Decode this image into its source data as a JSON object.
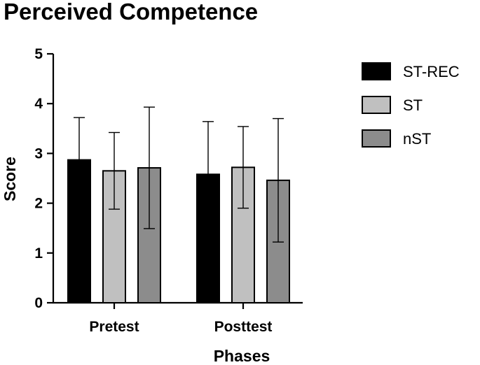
{
  "chart_data": {
    "type": "bar",
    "title": "Perceived Competence",
    "xlabel": "Phases",
    "ylabel": "Score",
    "ylim": [
      0,
      5
    ],
    "yticks": [
      0,
      1,
      2,
      3,
      4,
      5
    ],
    "categories": [
      "Pretest",
      "Posttest"
    ],
    "series": [
      {
        "name": "ST-REC",
        "color": "#000000",
        "values": [
          2.87,
          2.58
        ],
        "errors": [
          0.85,
          1.06
        ]
      },
      {
        "name": "ST",
        "color": "#c0c0c0",
        "values": [
          2.65,
          2.72
        ],
        "errors": [
          0.77,
          0.82
        ]
      },
      {
        "name": "nST",
        "color": "#8c8c8c",
        "values": [
          2.71,
          2.46
        ],
        "errors": [
          1.22,
          1.24
        ]
      }
    ],
    "legend_position": "top-right",
    "grid": false
  }
}
